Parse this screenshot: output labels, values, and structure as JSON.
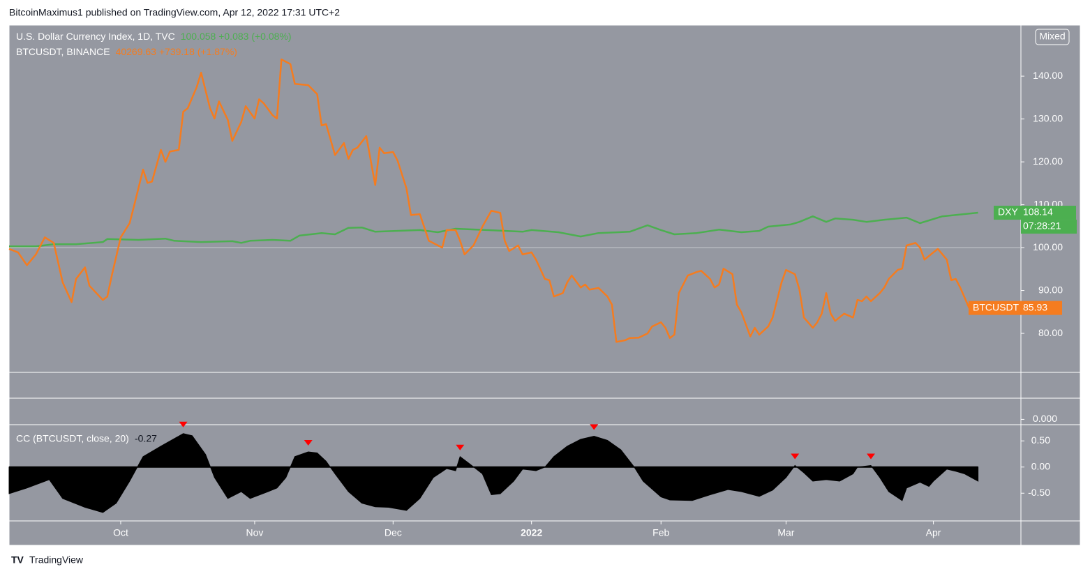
{
  "header": {
    "byline": "BitcoinMaximus1 published on TradingView.com, Apr 12, 2022 17:31 UTC+2"
  },
  "mixed_button": "Mixed",
  "footer": {
    "brand": "TradingView"
  },
  "chart_data": [
    {
      "type": "line",
      "legend": [
        {
          "title": "U.S. Dollar Currency Index, 1D, TVC",
          "quote": "100.058 +0.083 (+0.08%)"
        },
        {
          "title": "BTCUSDT, BINANCE",
          "quote": "40269.63 +739.18 (+1.87%)"
        }
      ],
      "xlim": [
        0,
        226.6
      ],
      "xticks": [
        {
          "value": 25,
          "label": "Oct"
        },
        {
          "value": 55,
          "label": "Nov"
        },
        {
          "value": 86,
          "label": "Dec"
        },
        {
          "value": 117,
          "label": "2022"
        },
        {
          "value": 146,
          "label": "Feb"
        },
        {
          "value": 174,
          "label": "Mar"
        },
        {
          "value": 207,
          "label": "Apr"
        }
      ],
      "ylim": [
        70.9,
        151.9
      ],
      "yticks": [
        {
          "value": 80,
          "label": "80.00"
        },
        {
          "value": 90,
          "label": "90.00"
        },
        {
          "value": 100,
          "label": "100.00"
        },
        {
          "value": 110,
          "label": "110.00"
        },
        {
          "value": 120,
          "label": "120.00"
        },
        {
          "value": 130,
          "label": "130.00"
        },
        {
          "value": 140,
          "label": "140.00"
        }
      ],
      "baseline": 100,
      "series": [
        {
          "name": "DXY",
          "color": "#4caf50",
          "countdown": "07:28:21",
          "x": [
            0,
            6,
            10,
            15,
            21,
            22,
            29,
            35,
            37,
            43,
            50,
            52,
            54,
            59,
            63,
            65,
            70,
            73,
            76,
            79,
            82,
            92,
            96,
            100,
            107,
            115,
            117,
            123,
            128,
            132,
            139,
            143,
            146,
            149,
            154,
            159,
            164,
            168,
            170,
            175,
            177,
            180,
            183,
            185,
            189,
            192,
            196,
            201,
            204,
            209,
            217
          ],
          "values": [
            100.3,
            100.3,
            100.8,
            100.8,
            101.3,
            102.0,
            101.8,
            102.1,
            101.6,
            101.3,
            101.5,
            101.1,
            101.6,
            101.8,
            101.6,
            102.8,
            103.4,
            103.1,
            104.6,
            104.7,
            103.7,
            104.1,
            103.6,
            104.4,
            104.1,
            103.7,
            104.1,
            103.6,
            102.6,
            103.4,
            103.7,
            105.2,
            104.1,
            103.1,
            103.4,
            104.2,
            103.6,
            103.9,
            104.9,
            105.4,
            106.0,
            107.3,
            106.0,
            106.8,
            106.5,
            106.0,
            106.5,
            107.0,
            105.7,
            107.3,
            108.14
          ]
        },
        {
          "name": "BTCUSDT",
          "color": "#f57c1f",
          "x": [
            0,
            2,
            4,
            6,
            8,
            10,
            12,
            14,
            15,
            17,
            18,
            21,
            22,
            23,
            25,
            27,
            28,
            30,
            31,
            32,
            34,
            35,
            36,
            38,
            39,
            40,
            42,
            43,
            45,
            46,
            47,
            49,
            50,
            52,
            53,
            55,
            56,
            57,
            59,
            60,
            61,
            63,
            64,
            67,
            69,
            70,
            71,
            73,
            75,
            76,
            77,
            78,
            80,
            82,
            83,
            84,
            86,
            87,
            89,
            90,
            92,
            94,
            97,
            98,
            100,
            101,
            102,
            104,
            106,
            108,
            110,
            111,
            112,
            114,
            115,
            117,
            118,
            120,
            121,
            122,
            124,
            125,
            126,
            128,
            129,
            130,
            132,
            134,
            135,
            136,
            138,
            139,
            141,
            143,
            144,
            146,
            147,
            148,
            149,
            150,
            152,
            154,
            155,
            157,
            158,
            159,
            160,
            162,
            163,
            164,
            166,
            167,
            168,
            170,
            171,
            173,
            174,
            176,
            177,
            178,
            180,
            181,
            182,
            183,
            184,
            185,
            187,
            189,
            190,
            191,
            192,
            193,
            195,
            196,
            197,
            199,
            200,
            201,
            203,
            204,
            205,
            207,
            208,
            210,
            211,
            212,
            213,
            215
          ],
          "values": [
            99.7,
            98.9,
            95.9,
            98.4,
            102.4,
            101.1,
            91.9,
            87.3,
            92.7,
            95.4,
            91.1,
            87.8,
            88.6,
            93.5,
            102.4,
            105.7,
            109.8,
            118.2,
            115.1,
            115.4,
            122.8,
            120.0,
            122.4,
            122.8,
            131.7,
            132.5,
            137.4,
            140.8,
            132.5,
            130.1,
            134.1,
            129.8,
            124.9,
            129.3,
            133.0,
            130.1,
            134.6,
            133.7,
            130.9,
            130.1,
            143.9,
            142.8,
            138.2,
            137.9,
            135.8,
            128.5,
            128.8,
            121.6,
            124.4,
            120.7,
            122.8,
            123.3,
            126.0,
            114.6,
            123.3,
            122.0,
            122.3,
            120.3,
            113.8,
            107.6,
            107.8,
            101.6,
            100.0,
            104.1,
            104.1,
            101.6,
            98.4,
            100.5,
            104.9,
            108.6,
            108.1,
            101.6,
            99.2,
            100.5,
            98.4,
            98.9,
            97.2,
            92.7,
            92.4,
            88.6,
            89.4,
            91.9,
            93.5,
            90.7,
            91.4,
            90.2,
            90.6,
            88.6,
            86.7,
            78.0,
            78.4,
            78.9,
            79.0,
            80.0,
            81.6,
            82.6,
            81.3,
            78.9,
            79.7,
            89.4,
            93.5,
            94.3,
            94.6,
            92.7,
            90.7,
            91.4,
            95.1,
            93.8,
            86.7,
            84.9,
            79.3,
            81.3,
            79.7,
            81.6,
            83.7,
            91.9,
            94.8,
            93.8,
            90.2,
            83.7,
            81.3,
            82.6,
            84.6,
            89.4,
            84.6,
            82.9,
            84.6,
            83.7,
            87.8,
            87.5,
            88.6,
            87.5,
            89.4,
            90.7,
            92.7,
            94.8,
            95.1,
            100.5,
            101.1,
            100.0,
            97.2,
            98.9,
            99.7,
            97.2,
            92.4,
            92.7,
            90.7,
            85.93
          ]
        }
      ]
    },
    {
      "type": "empty",
      "ylim": [
        -0.25,
        1
      ],
      "yticks": [
        {
          "value": 0,
          "label": "0.000"
        }
      ]
    },
    {
      "type": "area",
      "title": "CC (BTCUSDT, close, 20)",
      "color": "#000000",
      "ylim": [
        -1.03,
        0.81
      ],
      "yticks": [
        {
          "value": -0.5,
          "label": "-0.50"
        },
        {
          "value": 0,
          "label": "0.00"
        },
        {
          "value": 0.5,
          "label": "0.50"
        }
      ],
      "x": [
        0,
        4,
        9,
        12,
        17,
        21,
        24,
        27,
        30,
        34,
        39,
        41,
        44,
        46,
        49,
        52,
        54,
        58,
        60,
        62,
        64,
        67,
        69,
        71,
        73,
        76,
        79,
        82,
        85,
        89,
        92,
        95,
        98,
        100,
        101,
        103,
        106,
        108,
        110,
        113,
        115,
        118,
        120,
        122,
        125,
        128,
        131,
        134,
        137,
        140,
        142,
        146,
        148,
        153,
        157,
        161,
        164,
        168,
        171,
        174,
        176,
        178,
        180,
        183,
        186,
        189,
        190,
        193,
        195,
        197,
        200,
        201,
        204,
        206,
        207,
        210,
        212,
        214,
        217
      ],
      "values": [
        -0.51,
        -0.4,
        -0.24,
        -0.6,
        -0.77,
        -0.87,
        -0.69,
        -0.27,
        0.2,
        0.4,
        0.64,
        0.6,
        0.24,
        -0.2,
        -0.6,
        -0.47,
        -0.6,
        -0.47,
        -0.4,
        -0.2,
        0.2,
        0.29,
        0.27,
        0.11,
        -0.13,
        -0.47,
        -0.69,
        -0.76,
        -0.77,
        -0.83,
        -0.6,
        -0.2,
        -0.03,
        -0.07,
        0.2,
        0.07,
        -0.13,
        -0.53,
        -0.51,
        -0.27,
        -0.04,
        -0.07,
        0.0,
        0.2,
        0.4,
        0.53,
        0.59,
        0.51,
        0.33,
        0.0,
        -0.27,
        -0.57,
        -0.63,
        -0.64,
        -0.53,
        -0.43,
        -0.47,
        -0.56,
        -0.44,
        -0.2,
        0.03,
        -0.11,
        -0.27,
        -0.24,
        -0.27,
        -0.13,
        0.0,
        0.03,
        -0.2,
        -0.47,
        -0.64,
        -0.4,
        -0.29,
        -0.37,
        -0.27,
        -0.04,
        -0.08,
        -0.13,
        -0.27
      ],
      "markers": {
        "color": "#ff0000",
        "x": [
          39,
          67,
          101,
          131,
          176,
          193
        ]
      }
    }
  ]
}
